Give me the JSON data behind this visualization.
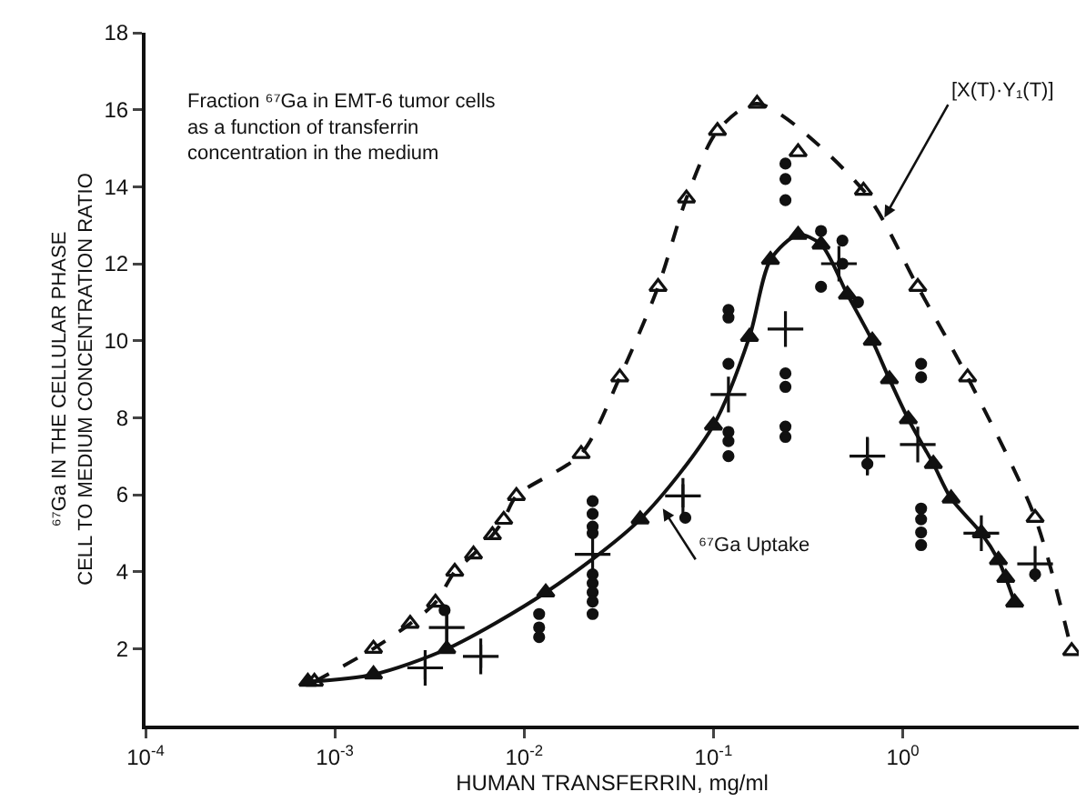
{
  "chart_data": {
    "type": "line",
    "xlabel": "HUMAN TRANSFERRIN, mg/ml",
    "ylabel": "⁶⁷Ga IN THE CELLULAR PHASE\nCELL TO MEDIUM CONCENTRATION RATIO",
    "log": "x",
    "xlim": [
      0.0001,
      8.5
    ],
    "xticks": [
      {
        "value": 0.0001,
        "label": "10$^{-4}$"
      },
      {
        "value": 0.001,
        "label": "10$^{-3}$"
      },
      {
        "value": 0.01,
        "label": "10$^{-2}$"
      },
      {
        "value": 0.1,
        "label": "10$^{-1}$"
      },
      {
        "value": 1,
        "label": "10$^{0}$"
      }
    ],
    "ylim": [
      0,
      18
    ],
    "yticks": [
      2,
      4,
      6,
      8,
      10,
      12,
      14,
      16,
      18
    ],
    "grid": false,
    "series": [
      {
        "type": "line",
        "color": "#111111",
        "marker": "triangle-open",
        "line_style": "dashed",
        "x": [
          0.00078,
          0.0016,
          0.0025,
          0.0034,
          0.0043,
          0.0054,
          0.0068,
          0.0078,
          0.0091,
          0.02,
          0.032,
          0.051,
          0.072,
          0.105,
          0.17,
          0.62,
          1.2,
          2.2,
          5.0,
          7.8
        ],
        "values": [
          1.14,
          2.0,
          2.65,
          3.2,
          4.0,
          4.45,
          4.95,
          5.35,
          5.97,
          7.06,
          9.05,
          11.4,
          13.7,
          15.45,
          16.16,
          13.9,
          11.4,
          9.05,
          5.4,
          1.94
        ]
      },
      {
        "type": "scatter",
        "color": "#111111",
        "marker": "triangle-open",
        "x": [
          0.28
        ],
        "values": [
          14.9
        ]
      },
      {
        "type": "line",
        "color": "#111111",
        "marker": "triangle",
        "line_style": "solid",
        "x": [
          0.00072,
          0.0016,
          0.0039,
          0.013,
          0.041,
          0.1,
          0.155,
          0.2,
          0.28,
          0.37,
          0.51,
          0.69,
          0.85,
          1.07,
          1.45,
          1.8,
          2.6,
          3.2,
          3.5,
          3.9
        ],
        "values": [
          1.14,
          1.33,
          1.99,
          3.46,
          5.36,
          7.8,
          10.1,
          12.1,
          12.75,
          12.5,
          11.2,
          10.0,
          9.0,
          7.96,
          6.8,
          5.9,
          5.0,
          4.3,
          3.84,
          3.2
        ]
      },
      {
        "type": "scatter",
        "color": "#111111",
        "marker": "cross",
        "x": [
          0.003,
          0.0039,
          0.0059,
          0.023,
          0.069,
          0.12,
          0.24,
          0.46,
          0.65,
          1.2,
          2.6,
          5.0
        ],
        "values": [
          1.5,
          2.55,
          1.8,
          4.45,
          5.97,
          8.6,
          10.3,
          12.0,
          7.0,
          7.3,
          5.0,
          4.2
        ],
        "errors": [
          0.3,
          0.45,
          0.3,
          null,
          0.3,
          null,
          null,
          null,
          0.5,
          null,
          null,
          null
        ]
      },
      {
        "type": "scatter",
        "color": "#111111",
        "marker": "circle",
        "x": [
          0.0038,
          0.012,
          0.012,
          0.012,
          0.023,
          0.023,
          0.023,
          0.023,
          0.023,
          0.023,
          0.023,
          0.023,
          0.023,
          0.071,
          0.12,
          0.12,
          0.12,
          0.12,
          0.12,
          0.12,
          0.24,
          0.24,
          0.24,
          0.24,
          0.24,
          0.24,
          0.24,
          0.37,
          0.37,
          0.48,
          0.48,
          0.58,
          1.25,
          1.25,
          1.25,
          1.25,
          1.25,
          1.25,
          0.65,
          5.0
        ],
        "values": [
          3.0,
          2.3,
          2.55,
          2.9,
          5.83,
          5.5,
          5.17,
          5.0,
          3.93,
          3.7,
          3.46,
          3.22,
          2.9,
          5.4,
          7.63,
          7.39,
          7.0,
          10.8,
          10.6,
          9.4,
          14.6,
          14.2,
          13.65,
          9.15,
          8.8,
          7.77,
          7.5,
          12.85,
          11.4,
          12.6,
          12.0,
          11.0,
          9.4,
          9.05,
          5.64,
          5.36,
          5.02,
          4.69,
          6.8,
          3.93
        ]
      }
    ],
    "annotations": [
      "Fraction ⁶⁷Ga in EMT-6 tumor cells\nas a function of transferrin\nconcentration in the medium",
      {
        "text": "[X(T)·Y₁(T)]",
        "x": 0.8,
        "y": 13.2
      },
      {
        "text": "⁶⁷Ga Uptake",
        "x": 0.054,
        "y": 5.64
      }
    ]
  }
}
